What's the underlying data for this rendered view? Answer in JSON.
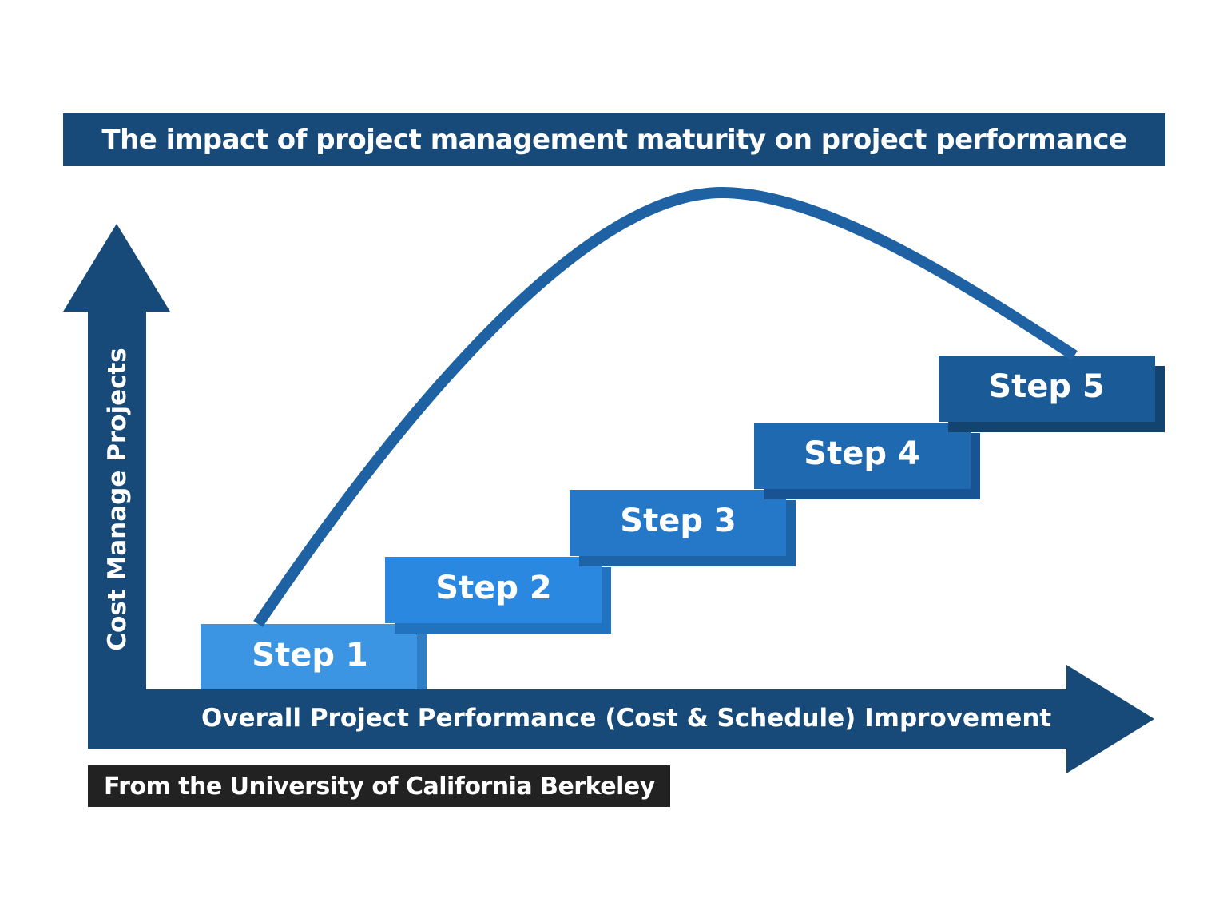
{
  "title": "The impact of project management maturity on project performance",
  "y_axis_label": "Cost Manage Projects",
  "x_axis_label": "Overall Project Performance (Cost & Schedule) Improvement",
  "steps": [
    {
      "label": "Step 1",
      "color": "#3c95e3",
      "shadow": "#2f7fc8"
    },
    {
      "label": "Step 2",
      "color": "#2a88e0",
      "shadow": "#2172bf"
    },
    {
      "label": "Step 3",
      "color": "#2478c7",
      "shadow": "#1c63a8"
    },
    {
      "label": "Step 4",
      "color": "#1f69b0",
      "shadow": "#185494"
    },
    {
      "label": "Step 5",
      "color": "#1a5a97",
      "shadow": "#13446f"
    }
  ],
  "source": "From the University of California Berkeley",
  "colors": {
    "axis": "#174a78",
    "title_bg": "#174a78",
    "curve": "#1f62a4",
    "source_bg": "#222222"
  }
}
